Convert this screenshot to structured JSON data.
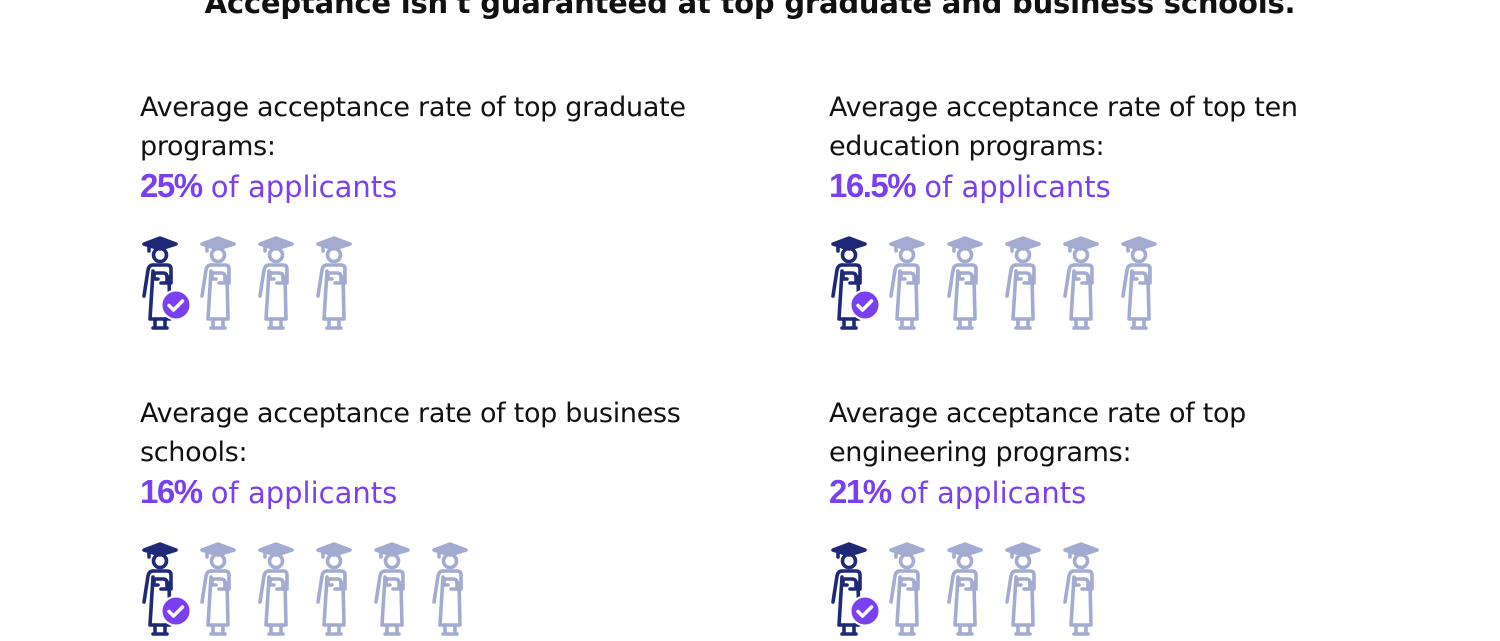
{
  "title": "Acceptance isn't guaranteed at top graduate and business schools.",
  "colors": {
    "accent": "#7b3ff2",
    "highlight_icon": "#1e2a78",
    "muted_icon": "#a3acd0"
  },
  "icon": "graduate-person-icon",
  "stats": [
    {
      "label": "Average acceptance rate of top graduate programs:",
      "value": "25%",
      "suffix": "of applicants",
      "icons_total": 4,
      "icons_highlighted": 1
    },
    {
      "label": "Average acceptance rate of top ten education programs:",
      "value": "16.5%",
      "suffix": "of applicants",
      "icons_total": 6,
      "icons_highlighted": 1
    },
    {
      "label": "Average acceptance rate of top business schools:",
      "value": "16%",
      "suffix": "of applicants",
      "icons_total": 6,
      "icons_highlighted": 1
    },
    {
      "label": "Average acceptance rate of top engineering programs:",
      "value": "21%",
      "suffix": "of applicants",
      "icons_total": 5,
      "icons_highlighted": 1
    }
  ]
}
